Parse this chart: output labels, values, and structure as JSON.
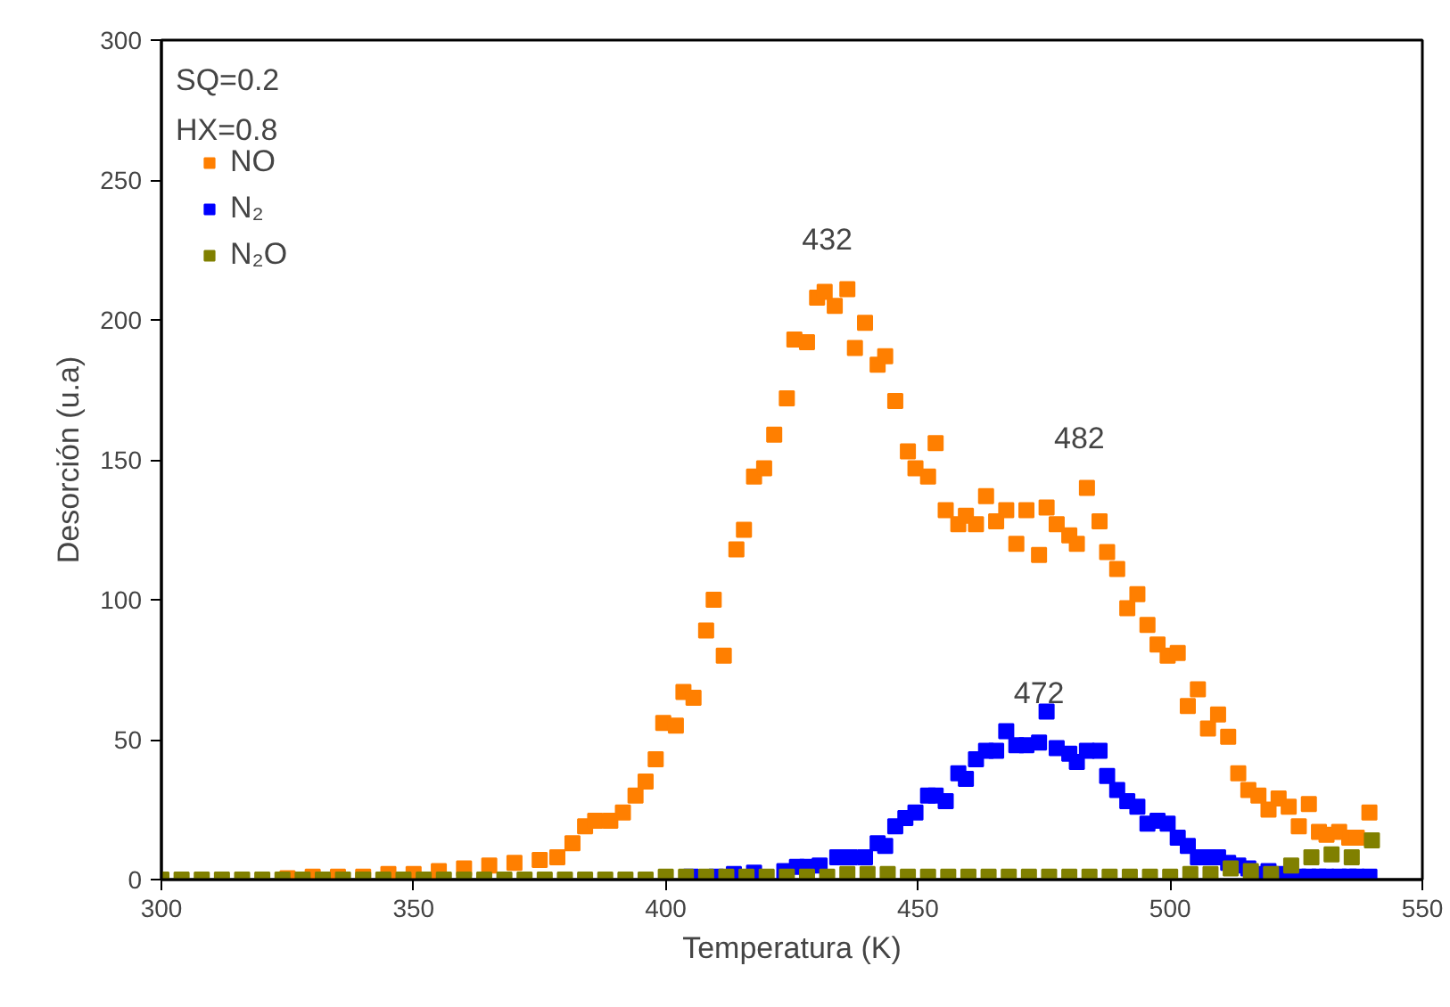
{
  "chart_data": {
    "type": "scatter",
    "xlabel": "Temperatura (K)",
    "ylabel": "Desorción (u.a)",
    "xlim": [
      300,
      550
    ],
    "xticks": [
      300,
      350,
      400,
      450,
      500,
      550
    ],
    "ylim": [
      0,
      300
    ],
    "yticks": [
      0,
      50,
      100,
      150,
      200,
      250,
      300
    ],
    "grid": false,
    "legend": "top left",
    "marker": "square",
    "annotations": [
      "SQ=0.2",
      "HX=0.8",
      {
        "text": "432",
        "x": 432,
        "y": 211
      },
      {
        "text": "482",
        "x": 482,
        "y": 140
      },
      {
        "text": "472",
        "x": 474,
        "y": 49
      }
    ],
    "series": [
      {
        "name": "NO",
        "color": "#ff7f00",
        "x": [
          325,
          330,
          335,
          340,
          345,
          350,
          355,
          360,
          365,
          370,
          375,
          378.5,
          381.5,
          384,
          386,
          389,
          391.5,
          394,
          396,
          398,
          399.5,
          402,
          403.5,
          405.5,
          408,
          409.5,
          411.5,
          414,
          415.5,
          417.5,
          419.5,
          421.5,
          424,
          425.5,
          428,
          430,
          431.5,
          433.5,
          436,
          437.5,
          439.5,
          442,
          443.5,
          445.5,
          448,
          449.5,
          452,
          453.5,
          455.5,
          458,
          459.5,
          461.5,
          463.5,
          465.5,
          467.5,
          469.5,
          471.5,
          474,
          475.5,
          477.5,
          480,
          481.5,
          483.5,
          486,
          487.5,
          489.5,
          491.5,
          493.5,
          495.5,
          497.5,
          499.5,
          501.5,
          503.5,
          505.5,
          507.5,
          509.5,
          511.5,
          513.5,
          515.5,
          517.5,
          519.5,
          521.5,
          523.5,
          525.5,
          527.5,
          529.5,
          531,
          533.5,
          535.5,
          537,
          539.5
        ],
        "values": [
          0.5,
          1,
          1,
          1,
          2,
          2,
          3,
          4,
          5,
          6,
          7,
          8,
          13,
          19,
          21,
          21,
          24,
          30,
          35,
          43,
          56,
          55,
          67,
          65,
          89,
          100,
          80,
          118,
          125,
          144,
          147,
          159,
          172,
          193,
          192,
          208,
          210,
          205,
          211,
          190,
          199,
          184,
          187,
          171,
          153,
          147,
          144,
          156,
          132,
          127,
          130,
          127,
          137,
          128,
          132,
          120,
          132,
          116,
          133,
          127,
          123,
          120,
          140,
          128,
          117,
          111,
          97,
          102,
          91,
          84,
          80,
          81,
          62,
          68,
          54,
          59,
          51,
          38,
          32,
          30,
          25,
          29,
          26,
          19,
          27,
          17,
          16,
          17,
          15,
          15,
          24
        ]
      },
      {
        "name": "N₂",
        "color": "#0000ff",
        "x": [
          405,
          410,
          413.5,
          417.5,
          423.5,
          426,
          428,
          430.5,
          434,
          436.5,
          439.5,
          442,
          443.5,
          445.5,
          447.5,
          449.5,
          452,
          453.5,
          455.5,
          458,
          459.5,
          461.5,
          463.5,
          465.5,
          467.5,
          469.5,
          471.5,
          474,
          475.5,
          477.5,
          480,
          481.5,
          483.5,
          486,
          487.5,
          489.5,
          491.5,
          493.5,
          495.5,
          497.5,
          499.5,
          501.5,
          503.5,
          505.5,
          507.5,
          509.5,
          511.5,
          513.5,
          515.5,
          517.5,
          519.5,
          521.5,
          523.5,
          525.5,
          527.5,
          529.5,
          531,
          533.5,
          535.5,
          537,
          539.5
        ],
        "values": [
          1,
          1,
          2,
          2.5,
          3,
          4.5,
          4.5,
          5,
          8,
          8,
          8,
          13,
          12,
          19,
          22,
          24,
          30,
          30,
          28,
          38,
          36,
          43,
          46,
          46,
          53,
          48,
          48,
          49,
          60,
          47,
          45,
          42,
          46,
          46,
          37,
          32,
          28,
          26,
          20,
          21,
          20,
          15,
          12,
          8,
          8,
          8,
          6,
          5,
          4,
          2,
          3,
          2,
          1,
          1,
          1,
          1,
          1,
          1,
          1,
          1,
          1
        ]
      },
      {
        "name": "N₂O",
        "color": "#808000",
        "x": [
          300,
          304,
          308,
          312,
          316,
          320,
          324,
          328,
          332,
          336,
          340,
          344,
          348,
          352,
          356,
          360,
          364,
          368,
          372,
          376,
          380,
          384,
          388,
          392,
          396,
          400,
          404,
          408,
          412,
          416,
          420,
          424,
          428,
          432,
          436,
          440,
          444,
          448,
          452,
          456,
          460,
          464,
          468,
          472,
          476,
          480,
          484,
          488,
          492,
          496,
          500,
          504,
          508,
          512,
          516,
          520,
          524,
          528,
          532,
          536,
          540
        ],
        "values": [
          0,
          0,
          0,
          0,
          0,
          0,
          0,
          0,
          0,
          0,
          0,
          0,
          0,
          0,
          0,
          0,
          0,
          0,
          0,
          0,
          0,
          0,
          0,
          0,
          0,
          1,
          1,
          1,
          1,
          1,
          1,
          1,
          1,
          1,
          2,
          2,
          2,
          1,
          1,
          1,
          1,
          1,
          1,
          1,
          1,
          1,
          1,
          1,
          1,
          1,
          1,
          2,
          2,
          4,
          3,
          2,
          5,
          8,
          9,
          8,
          14
        ]
      }
    ]
  }
}
